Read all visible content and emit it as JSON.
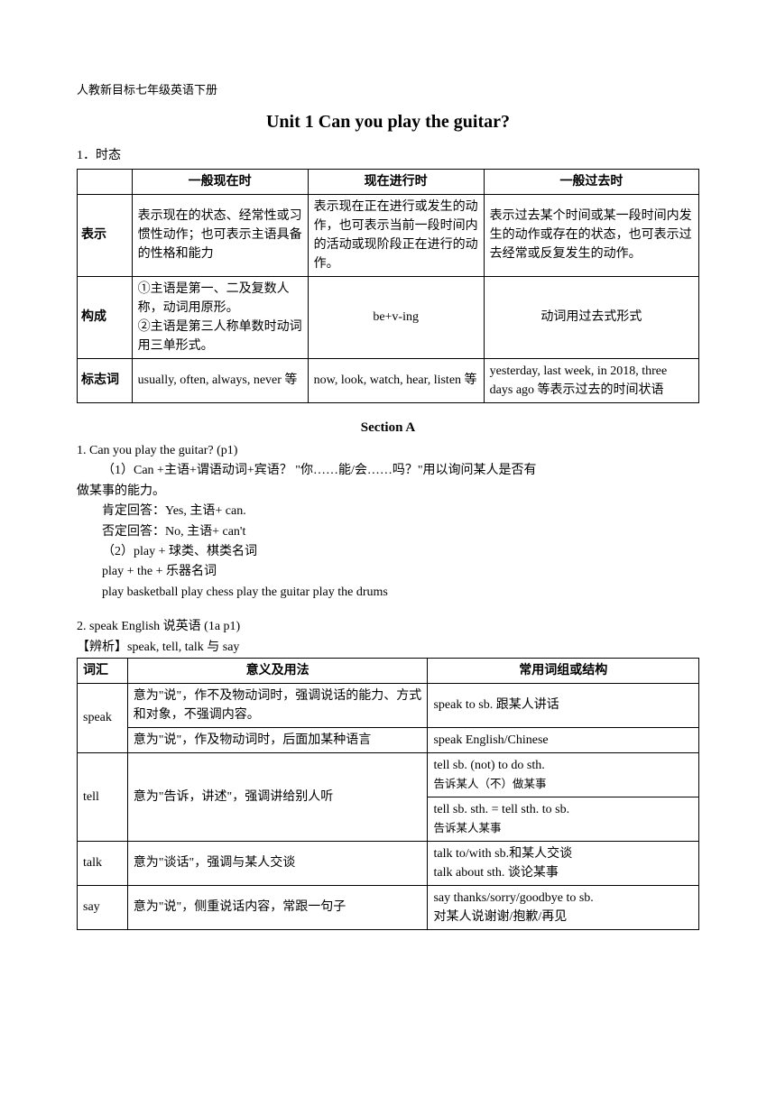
{
  "header": "人教新目标七年级英语下册",
  "title": "Unit 1    Can you play the guitar?",
  "section1_label": "1．时态",
  "table1": {
    "headers": [
      "",
      "一般现在时",
      "现在进行时",
      "一般过去时"
    ],
    "rows": [
      {
        "label": "表示",
        "c1": "表示现在的状态、经常性或习惯性动作；也可表示主语具备的性格和能力",
        "c2": "表示现在正在进行或发生的动作，也可表示当前一段时间内的活动或现阶段正在进行的动作。",
        "c3": "表示过去某个时间或某一段时间内发生的动作或存在的状态，也可表示过去经常或反复发生的动作。"
      },
      {
        "label": "构成",
        "c1": "①主语是第一、二及复数人称，动词用原形。\n②主语是第三人称单数时动词用三单形式。",
        "c2": "be+v-ing",
        "c3": "动词用过去式形式"
      },
      {
        "label": "标志词",
        "c1": "usually, often, always, never 等",
        "c2": "now, look, watch, hear, listen 等",
        "c3": "yesterday, last week, in 2018, three days ago 等表示过去的时间状语"
      }
    ]
  },
  "sectionA_title": "Section A",
  "sectionA": {
    "q1": "1. Can you play the guitar?   (p1)",
    "q1_1a": "（1）Can +主语+谓语动词+宾语？    \"你……能/会……吗？\"用以询问某人是否有",
    "q1_1b": "做某事的能力。",
    "q1_yes": "肯定回答：Yes, 主语+ can.",
    "q1_no": "否定回答：No, 主语+ can't",
    "q1_2": "（2）play + 球类、棋类名词",
    "q1_2b": "play + the + 乐器名词",
    "q1_2c": "play basketball    play chess      play the guitar      play the drums",
    "q2": "2. speak English 说英语    (1a p1)",
    "q2_sub": "【辨析】speak, tell, talk 与 say"
  },
  "table2": {
    "headers": [
      "词汇",
      "意义及用法",
      "常用词组或结构"
    ],
    "rows": [
      {
        "vocab": "speak",
        "meanings": [
          "意为\"说\"，作不及物动词时，强调说话的能力、方式和对象，不强调内容。",
          "意为\"说\"，作及物动词时，后面加某种语言"
        ],
        "usages": [
          "speak to sb. 跟某人讲话",
          "speak English/Chinese"
        ]
      },
      {
        "vocab": "tell",
        "meaning": "意为\"告诉，讲述\"，强调讲给别人听",
        "usages": [
          {
            "main": "tell sb. (not) to do sth.",
            "sub": "告诉某人（不）做某事"
          },
          {
            "main": "tell sb. sth. = tell sth. to sb.",
            "sub": "告诉某人某事"
          }
        ]
      },
      {
        "vocab": "talk",
        "meaning": "意为\"谈话\"，强调与某人交谈",
        "usages": [
          "talk to/with sb.和某人交谈",
          "talk about sth. 谈论某事"
        ]
      },
      {
        "vocab": "say",
        "meaning": "意为\"说\"，侧重说话内容，常跟一句子",
        "usages": [
          "say thanks/sorry/goodbye to sb.",
          "对某人说谢谢/抱歉/再见"
        ]
      }
    ]
  }
}
